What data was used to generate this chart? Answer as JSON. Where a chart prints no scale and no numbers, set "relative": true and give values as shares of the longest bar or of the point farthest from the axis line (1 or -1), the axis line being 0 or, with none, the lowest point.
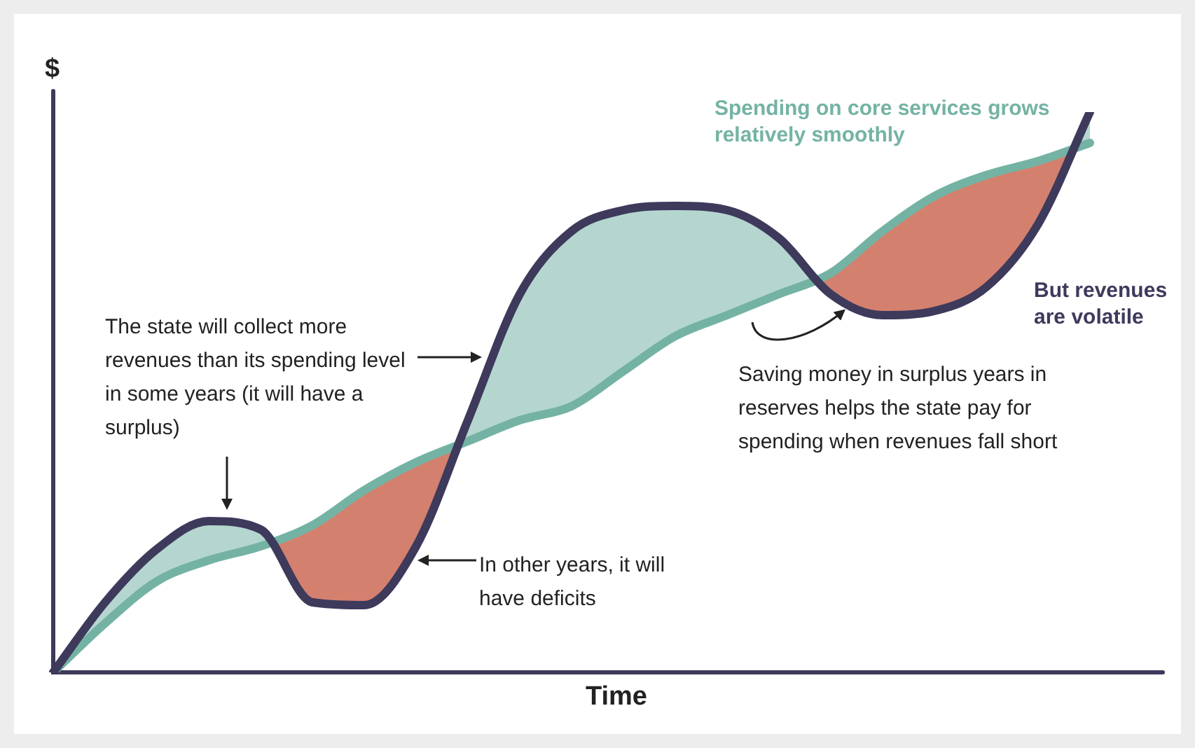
{
  "chart_data": {
    "type": "line",
    "relative": true,
    "xlabel": "Time",
    "ylabel": "$",
    "grid": false,
    "legend": false,
    "marker": "none",
    "categories": [
      null,
      null,
      null,
      null,
      null,
      null,
      null,
      null,
      null,
      null,
      null,
      null,
      null,
      null,
      null,
      null,
      null,
      null,
      null,
      null,
      null
    ],
    "series": [
      {
        "name": "But revenues are volatile",
        "color": "#3d3a5c",
        "values": [
          0,
          0.125,
          0.22,
          0.27,
          0.255,
          0.125,
          0.12,
          0.225,
          0.45,
          0.675,
          0.7875,
          0.825,
          0.8325,
          0.825,
          0.775,
          0.675,
          0.6375,
          0.645,
          0.6875,
          0.8,
          1
        ]
      },
      {
        "name": "Spending on core services grows relatively smoothly",
        "color": "#74b3a4",
        "values": [
          0,
          0.0875,
          0.1625,
          0.2,
          0.225,
          0.2625,
          0.325,
          0.375,
          0.4125,
          0.45,
          0.475,
          0.5375,
          0.6,
          0.6375,
          0.675,
          0.7125,
          0.7875,
          0.85,
          0.8875,
          0.9125,
          0.945
        ]
      }
    ],
    "annotations": [
      "The state will collect more revenues than its spending level in some years (it will have a surplus)",
      "In other years, it will have deficits",
      "Saving money in surplus years in reserves helps the state pay for spending when revenues fall short"
    ]
  }
}
